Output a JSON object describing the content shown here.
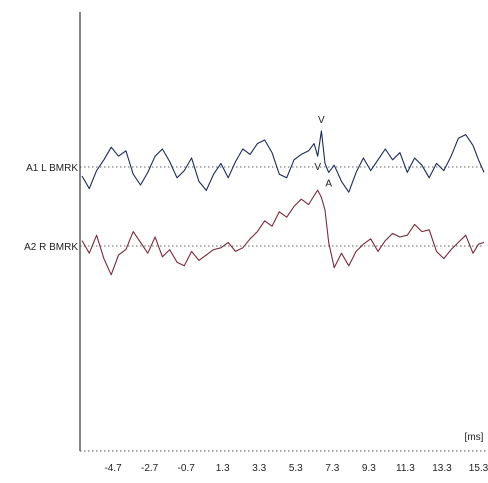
{
  "chart_data": {
    "type": "line",
    "xlabel": "[ms]",
    "x_ticks": [
      -4.7,
      -2.7,
      -0.7,
      1.3,
      3.3,
      5.3,
      7.3,
      9.3,
      11.3,
      13.3,
      15.3
    ],
    "x_tick_labels": [
      "-4.7",
      "-2.7",
      "-0.7",
      "1.3",
      "3.3",
      "5.3",
      "7.3",
      "9.3",
      "11.3",
      "13.3",
      "15.3"
    ],
    "xlim": [
      -6.4,
      15.6
    ],
    "series": [
      {
        "name": "A1 L BMRK",
        "color": "#1e2a5a",
        "peak_labels": [
          {
            "text": "V",
            "x": 6.7,
            "pos": "above"
          },
          {
            "text": "V",
            "x": 6.5,
            "pos": "below"
          },
          {
            "text": "A",
            "x": 7.1,
            "pos": "below"
          }
        ],
        "x": [
          -6.4,
          -6.0,
          -5.6,
          -5.2,
          -4.8,
          -4.4,
          -4.0,
          -3.6,
          -3.2,
          -2.8,
          -2.4,
          -2.0,
          -1.6,
          -1.2,
          -0.8,
          -0.4,
          0.0,
          0.4,
          0.8,
          1.2,
          1.6,
          2.0,
          2.4,
          2.8,
          3.2,
          3.6,
          4.0,
          4.4,
          4.8,
          5.2,
          5.6,
          6.0,
          6.3,
          6.5,
          6.7,
          6.9,
          7.1,
          7.4,
          7.8,
          8.2,
          8.6,
          9.0,
          9.4,
          9.8,
          10.2,
          10.6,
          11.0,
          11.4,
          11.8,
          12.2,
          12.6,
          13.0,
          13.4,
          13.8,
          14.2,
          14.6,
          15.0,
          15.3,
          15.6
        ],
        "y": [
          -0.5,
          -1.2,
          -0.2,
          0.4,
          1.1,
          0.6,
          0.9,
          -0.4,
          -1.0,
          -0.3,
          0.6,
          1.0,
          0.3,
          -0.6,
          -0.2,
          0.5,
          -0.8,
          -1.3,
          -0.4,
          0.2,
          -0.6,
          0.3,
          1.0,
          0.7,
          1.3,
          1.5,
          0.8,
          -0.4,
          -0.6,
          0.4,
          0.7,
          0.9,
          1.3,
          0.6,
          2.0,
          0.2,
          -0.3,
          0.1,
          -0.8,
          -1.4,
          -0.3,
          0.5,
          -0.2,
          0.4,
          1.0,
          0.4,
          0.8,
          -0.3,
          0.5,
          0.1,
          -0.6,
          0.2,
          -0.2,
          0.6,
          1.6,
          1.8,
          1.2,
          0.4,
          -0.3
        ]
      },
      {
        "name": "A2 R BMRK",
        "color": "#7a2a3a",
        "peak_labels": [],
        "x": [
          -6.4,
          -6.0,
          -5.6,
          -5.2,
          -4.8,
          -4.4,
          -4.0,
          -3.6,
          -3.2,
          -2.8,
          -2.4,
          -2.0,
          -1.6,
          -1.2,
          -0.8,
          -0.4,
          0.0,
          0.4,
          0.8,
          1.2,
          1.6,
          2.0,
          2.4,
          2.8,
          3.2,
          3.6,
          4.0,
          4.4,
          4.8,
          5.2,
          5.6,
          6.0,
          6.3,
          6.5,
          6.7,
          6.9,
          7.1,
          7.4,
          7.8,
          8.2,
          8.6,
          9.0,
          9.4,
          9.8,
          10.2,
          10.6,
          11.0,
          11.4,
          11.8,
          12.2,
          12.6,
          13.0,
          13.4,
          13.8,
          14.2,
          14.6,
          15.0,
          15.3,
          15.6
        ],
        "y": [
          0.3,
          -0.4,
          0.6,
          -0.7,
          -1.6,
          -0.5,
          -0.2,
          0.8,
          0.2,
          -0.4,
          0.5,
          -0.6,
          -0.2,
          -0.9,
          -1.1,
          -0.3,
          -0.8,
          -0.5,
          -0.2,
          -0.1,
          0.2,
          -0.3,
          -0.1,
          0.4,
          0.8,
          1.4,
          1.1,
          1.9,
          1.6,
          2.2,
          2.6,
          2.3,
          2.8,
          3.1,
          2.7,
          2.0,
          0.2,
          -1.2,
          -0.4,
          -1.1,
          -0.3,
          0.1,
          0.4,
          -0.3,
          0.3,
          0.7,
          0.5,
          0.6,
          1.2,
          0.8,
          0.9,
          -0.3,
          -0.7,
          -0.2,
          0.2,
          0.6,
          -0.4,
          0.1,
          0.2
        ]
      }
    ]
  }
}
